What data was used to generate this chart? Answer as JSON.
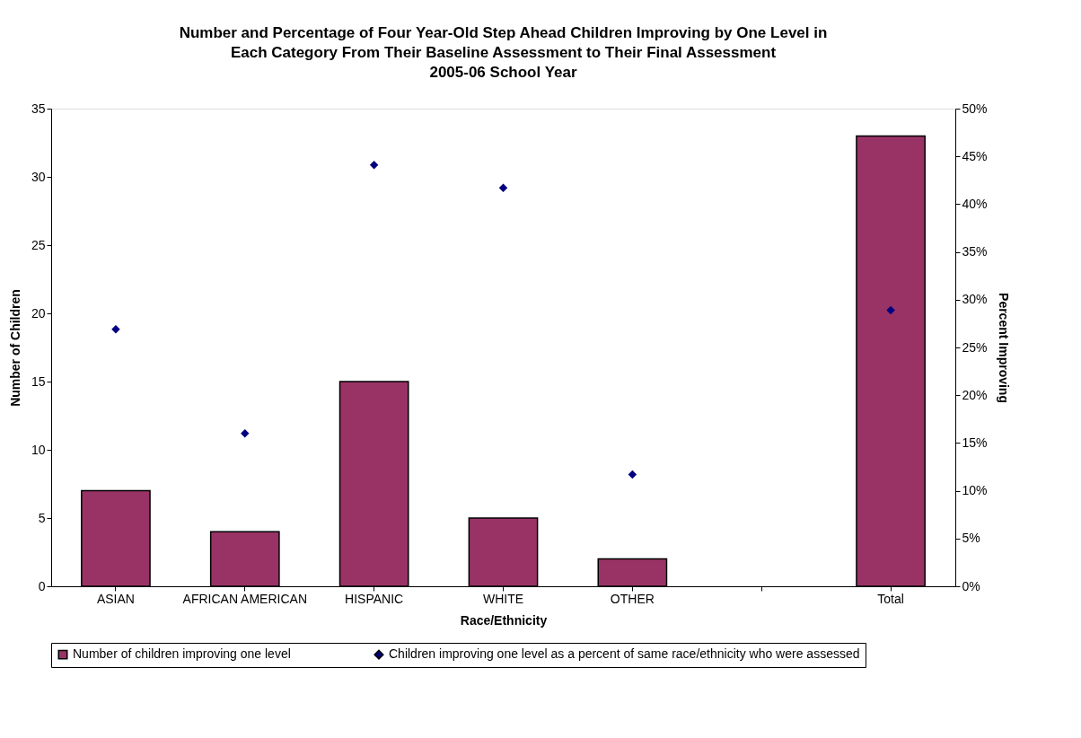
{
  "chart_data": {
    "type": "bar",
    "title": "Number and Percentage of Four Year-Old Step Ahead Children Improving by One Level in\nEach Category From Their Baseline Assessment to Their Final Assessment\n2005-06 School Year",
    "xlabel": "Race/Ethnicity",
    "ylabel": "Number of Children",
    "y2label": "Percent Improving",
    "categories": [
      "ASIAN",
      "AFRICAN AMERICAN",
      "HISPANIC",
      "WHITE",
      "OTHER",
      null,
      "Total"
    ],
    "series": [
      {
        "name": "Number of children improving one level",
        "color": "#993366",
        "values": [
          7,
          4,
          15,
          5,
          2,
          null,
          33
        ]
      },
      {
        "name": "Children improving one level as a percent of same race/ethnicity who were assessed",
        "color": "#000080",
        "type": "scatter",
        "axis": "y2",
        "marker": "diamond",
        "values": [
          26.9,
          16.0,
          44.1,
          41.7,
          11.7,
          null,
          28.9
        ]
      }
    ],
    "ylim": [
      0,
      35
    ],
    "yticks": [
      0,
      5,
      10,
      15,
      20,
      25,
      30,
      35
    ],
    "y2lim": [
      0,
      50
    ],
    "y2ticks": [
      {
        "value": 0,
        "label": "0%"
      },
      {
        "value": 5,
        "label": "5%"
      },
      {
        "value": 10,
        "label": "10%"
      },
      {
        "value": 15,
        "label": "15%"
      },
      {
        "value": 20,
        "label": "20%"
      },
      {
        "value": 25,
        "label": "25%"
      },
      {
        "value": 30,
        "label": "30%"
      },
      {
        "value": 35,
        "label": "35%"
      },
      {
        "value": 40,
        "label": "40%"
      },
      {
        "value": 45,
        "label": "45%"
      },
      {
        "value": 50,
        "label": "50%"
      }
    ],
    "grid": false,
    "legend": "bottom"
  }
}
